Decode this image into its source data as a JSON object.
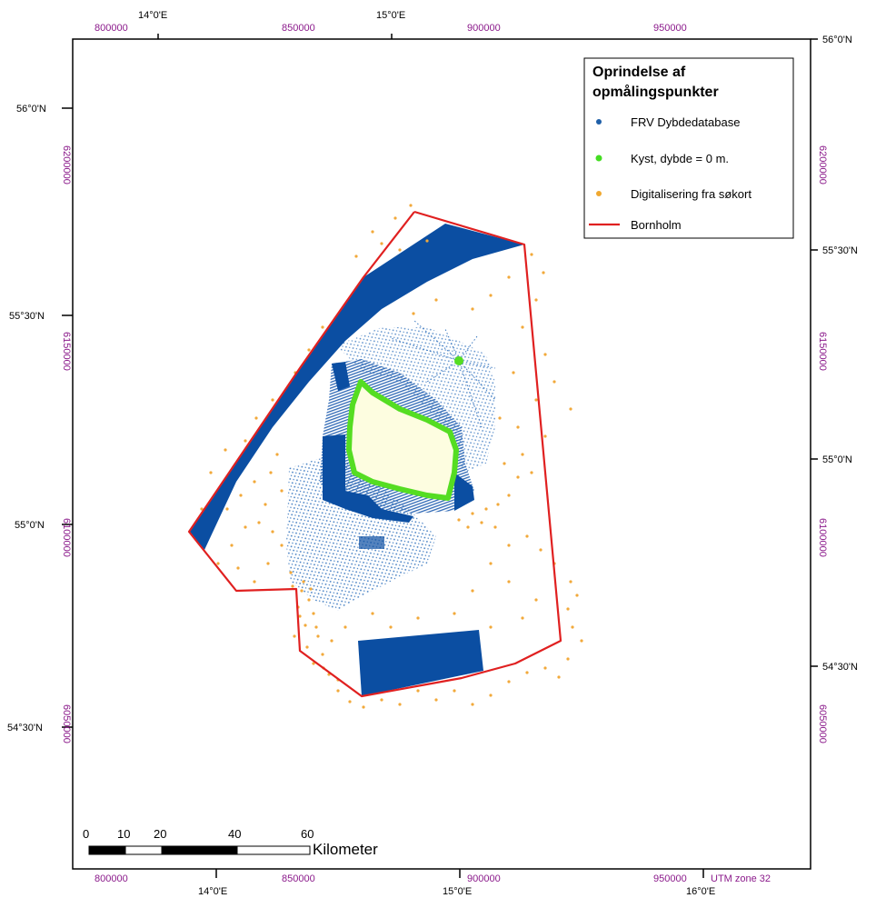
{
  "map": {
    "frame_ticks": {
      "top_utm": [
        "800000",
        "850000",
        "900000",
        "950000"
      ],
      "top_geo": [
        "14°0'E",
        "15°0'E"
      ],
      "bottom_utm": [
        "800000",
        "850000",
        "900000",
        "950000"
      ],
      "bottom_geo": [
        "14°0'E",
        "15°0'E",
        "16°0'E"
      ],
      "left_geo": [
        "56°0'N",
        "55°30'N",
        "55°0'N",
        "54°30'N"
      ],
      "left_utm": [
        "6200000",
        "6150000",
        "6100000",
        "6050000"
      ],
      "right_geo": [
        "56°0'N",
        "55°30'N",
        "55°0'N",
        "54°30'N"
      ],
      "right_utm": [
        "6200000",
        "6150000",
        "6100000",
        "6050000"
      ],
      "utm_zone": "UTM zone 32"
    },
    "legend": {
      "title_line1": "Oprindelse af",
      "title_line2": "opmålingspunkter",
      "items": [
        {
          "label": "FRV Dybdedatabase",
          "symbol": "dot",
          "color": "#1f5fa8"
        },
        {
          "label": "Kyst, dybde = 0 m.",
          "symbol": "dot",
          "color": "#44dd22"
        },
        {
          "label": "Digitalisering fra søkort",
          "symbol": "dot",
          "color": "#f0a830"
        },
        {
          "label": "Bornholm",
          "symbol": "line",
          "color": "#e02020"
        }
      ]
    },
    "scale_bar": {
      "ticks": [
        "0",
        "10",
        "20",
        "40",
        "60"
      ],
      "unit": "Kilometer"
    },
    "colors": {
      "depth_data": "#0b4ea2",
      "depth_track": "#3a78c0",
      "coast": "#55dd22",
      "island": "#fdfde0",
      "digitised": "#f2a93a",
      "boundary": "#e02020",
      "utm_label": "#8b1a8b"
    }
  }
}
